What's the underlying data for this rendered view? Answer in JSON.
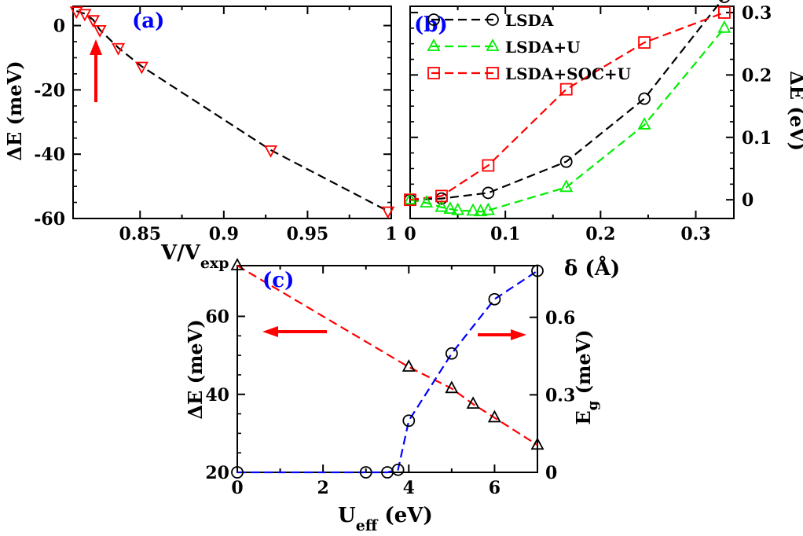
{
  "chart_data": [
    {
      "id": "a",
      "type": "line",
      "panel_label": "(a)",
      "xlabel": "V/V",
      "xlabel_sub": "exp",
      "ylabel": "ΔE (meV)",
      "xlim": [
        0.81,
        1.0
      ],
      "ylim": [
        -60,
        6
      ],
      "xticks": [
        0.85,
        0.9,
        0.95,
        1.0
      ],
      "xtick_labels": [
        "0.85",
        "0.9",
        "0.95",
        "1"
      ],
      "yticks": [
        0,
        -20,
        -40,
        -60
      ],
      "ytick_labels": [
        "0",
        "-20",
        "-40",
        "-60"
      ],
      "series": [
        {
          "name": "ΔE",
          "marker": "triangle-down",
          "line_color": "#000000",
          "marker_color": "#ff0000",
          "x": [
            0.812,
            0.817,
            0.822,
            0.826,
            0.837,
            0.851,
            0.928,
            0.998
          ],
          "y": [
            4.5,
            3.7,
            1.8,
            -1.3,
            -6.9,
            -12.7,
            -38.7,
            -57.7
          ]
        }
      ],
      "annotations": [
        {
          "type": "arrow",
          "direction": "up",
          "color": "#ff0000",
          "at_x": 0.825
        }
      ]
    },
    {
      "id": "b",
      "type": "line",
      "panel_label": "(b)",
      "xlabel": "δ  (Å)",
      "ylabel": "ΔE (eV)",
      "xlim": [
        0,
        0.34
      ],
      "ylim": [
        -0.03,
        0.31
      ],
      "xticks": [
        0,
        0.1,
        0.2,
        0.3
      ],
      "xtick_labels": [
        "0",
        "0.1",
        "0.2",
        "0.3"
      ],
      "yticks": [
        0,
        0.1,
        0.2,
        0.3
      ],
      "ytick_labels": [
        "0",
        "0.1",
        "0.2",
        "0.3"
      ],
      "legend_position": "top-left",
      "series": [
        {
          "name": "LSDA",
          "marker": "circle",
          "color": "#000000",
          "x": [
            0,
            0.033,
            0.082,
            0.164,
            0.246,
            0.33
          ],
          "y": [
            0,
            0.002,
            0.011,
            0.061,
            0.162,
            0.325
          ]
        },
        {
          "name": "LSDA+U",
          "marker": "triangle-up",
          "color": "#00ee00",
          "x": [
            0,
            0.017,
            0.033,
            0.042,
            0.05,
            0.066,
            0.074,
            0.082,
            0.164,
            0.246,
            0.33
          ],
          "y": [
            0,
            -0.005,
            -0.012,
            -0.015,
            -0.017,
            -0.018,
            -0.019,
            -0.017,
            0.02,
            0.12,
            0.275
          ]
        },
        {
          "name": "LSDA+SOC+U",
          "marker": "square",
          "color": "#ff0000",
          "x": [
            0,
            0.033,
            0.082,
            0.164,
            0.246,
            0.33
          ],
          "y": [
            0,
            0.006,
            0.055,
            0.177,
            0.252,
            0.3
          ]
        }
      ]
    },
    {
      "id": "c",
      "type": "line",
      "panel_label": "(c)",
      "xlabel": "U",
      "xlabel_sub": "eff",
      "xlabel_suffix": " (eV)",
      "ylabel": "ΔE (meV)",
      "ylabel_right": "E",
      "ylabel_right_sub": "g",
      "ylabel_right_suffix": " (meV)",
      "xlim": [
        0,
        7
      ],
      "ylim": [
        20,
        73
      ],
      "ylim_right": [
        0,
        0.8
      ],
      "xticks": [
        0,
        2,
        4,
        6
      ],
      "xtick_labels": [
        "0",
        "2",
        "4",
        "6"
      ],
      "yticks": [
        20,
        40,
        60
      ],
      "ytick_labels": [
        "20",
        "40",
        "60"
      ],
      "yticks_right": [
        0,
        0.3,
        0.6
      ],
      "ytick_right_labels": [
        "0",
        "0.3",
        "0.6"
      ],
      "series": [
        {
          "name": "ΔE",
          "axis": "left",
          "marker": "triangle-up",
          "line_color": "#ff0000",
          "marker_color": "#000000",
          "x": [
            0,
            4,
            5,
            5.5,
            6,
            7
          ],
          "y": [
            73,
            47,
            41.5,
            37.5,
            34,
            27
          ]
        },
        {
          "name": "E_g",
          "axis": "right",
          "marker": "circle",
          "line_color": "#0000ff",
          "marker_color": "#000000",
          "x": [
            0,
            3,
            3.5,
            3.75,
            4,
            5,
            6,
            7
          ],
          "y": [
            0,
            0,
            0,
            0.01,
            0.2,
            0.46,
            0.67,
            0.78
          ]
        }
      ],
      "annotations": [
        {
          "type": "arrow",
          "direction": "left",
          "color": "#ff0000"
        },
        {
          "type": "arrow",
          "direction": "right",
          "color": "#ff0000"
        }
      ]
    }
  ]
}
